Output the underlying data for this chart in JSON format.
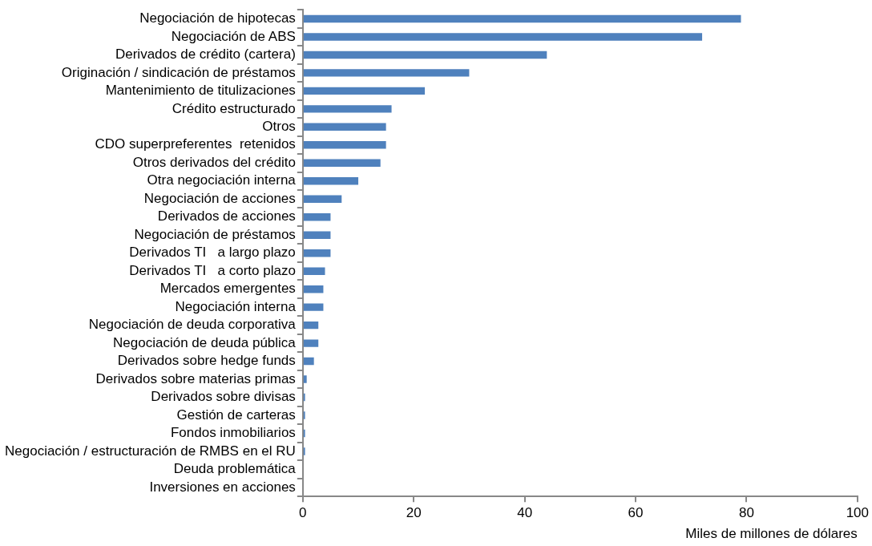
{
  "chart_data": {
    "type": "bar",
    "orientation": "horizontal",
    "xlabel": "Miles de millones de dólares",
    "categories": [
      "Negociación de hipotecas",
      "Negociación de ABS",
      "Derivados de crédito (cartera)",
      "Originación / sindicación de préstamos",
      "Mantenimiento de titulizaciones",
      "Crédito estructurado",
      "Otros",
      "CDO superpreferentes  retenidos",
      "Otros derivados del crédito",
      "Otra negociación interna",
      "Negociación de acciones",
      "Derivados de acciones",
      "Negociación de préstamos",
      "Derivados TI   a largo plazo",
      "Derivados TI   a corto plazo",
      "Mercados emergentes",
      "Negociación interna",
      "Negociación de deuda corporativa",
      "Negociación de deuda pública",
      "Derivados sobre hedge funds",
      "Derivados sobre materias primas",
      "Derivados sobre divisas",
      "Gestión de carteras",
      "Fondos inmobiliarios",
      "Negociación / estructuración de RMBS en el RU",
      "Deuda problemática",
      "Inversiones en acciones"
    ],
    "values": [
      79,
      72,
      44,
      30,
      22,
      16,
      15,
      15,
      14,
      10,
      7,
      5,
      5,
      5,
      4,
      3.7,
      3.7,
      2.8,
      2.8,
      2,
      0.7,
      0.4,
      0.4,
      0.4,
      0.4,
      0,
      0
    ],
    "color": "#4f81bd",
    "xlim": [
      0,
      100
    ],
    "xticks": [
      0,
      20,
      40,
      60,
      80,
      100
    ],
    "grid": false,
    "legend": false
  }
}
